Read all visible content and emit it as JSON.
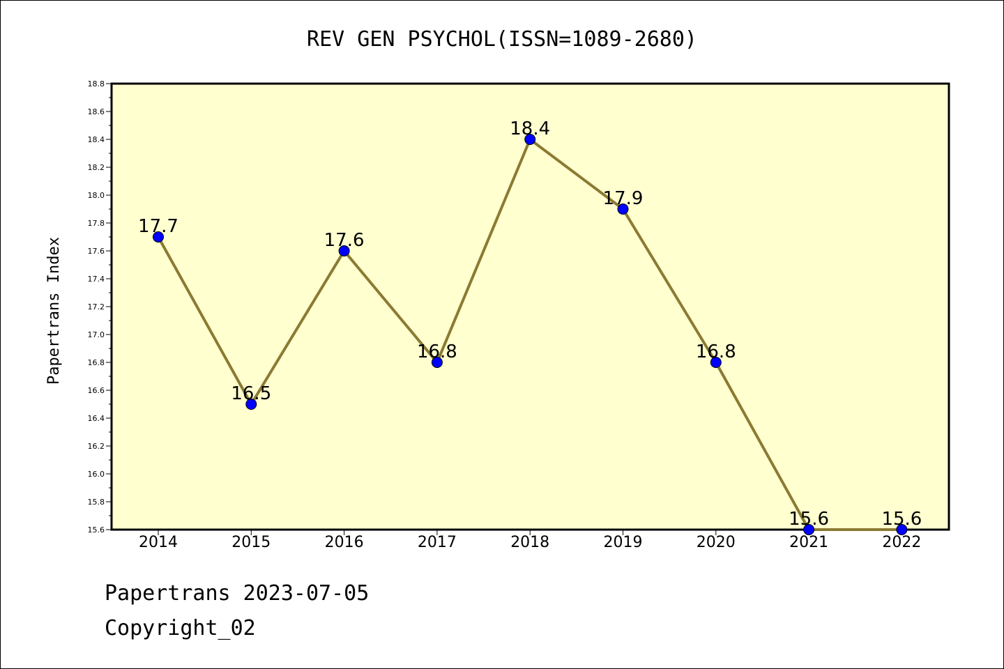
{
  "chart_data": {
    "type": "line",
    "title": "REV GEN PSYCHOL(ISSN=1089-2680)",
    "xlabel": "",
    "ylabel": "Papertrans Index",
    "categories": [
      "2014",
      "2015",
      "2016",
      "2017",
      "2018",
      "2019",
      "2020",
      "2021",
      "2022"
    ],
    "values": [
      17.7,
      16.5,
      17.6,
      16.8,
      18.4,
      17.9,
      16.8,
      15.6,
      15.6
    ],
    "data_labels": [
      "17.7",
      "16.5",
      "17.6",
      "16.8",
      "18.4",
      "17.9",
      "16.8",
      "15.6",
      "15.6"
    ],
    "ylim": [
      15.6,
      18.8
    ],
    "yticks": [
      "15.6",
      "15.8",
      "16.0",
      "16.2",
      "16.4",
      "16.6",
      "16.8",
      "17.0",
      "17.2",
      "17.4",
      "17.6",
      "17.8",
      "18.0",
      "18.2",
      "18.4",
      "18.6",
      "18.8"
    ],
    "grid": false,
    "colors": {
      "plot_background": "#ffffd0",
      "line": "#8b7a32",
      "marker": "#0000ff"
    }
  },
  "footer": {
    "line1": "Papertrans 2023-07-05",
    "line2": "Copyright_02"
  }
}
